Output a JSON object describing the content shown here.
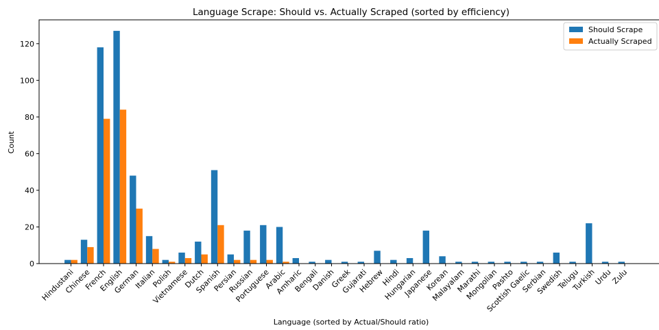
{
  "chart_data": {
    "type": "bar",
    "title": "Language Scrape: Should vs. Actually Scraped (sorted by efficiency)",
    "xlabel": "Language (sorted by Actual/Should ratio)",
    "ylabel": "Count",
    "ylim": [
      0,
      133
    ],
    "yticks": [
      0,
      20,
      40,
      60,
      80,
      100,
      120
    ],
    "grid": false,
    "legend_position": "top-right",
    "categories": [
      "Hindustani",
      "Chinese",
      "French",
      "English",
      "German",
      "Italian",
      "Polish",
      "Vietnamese",
      "Dutch",
      "Spanish",
      "Persian",
      "Russian",
      "Portuguese",
      "Arabic",
      "Amharic",
      "Bengali",
      "Danish",
      "Greek",
      "Gujarati",
      "Hebrew",
      "Hindi",
      "Hungarian",
      "Japanese",
      "Korean",
      "Malayalam",
      "Marathi",
      "Mongolian",
      "Pashto",
      "Scottish Gaelic",
      "Serbian",
      "Swedish",
      "Telugu",
      "Turkish",
      "Urdu",
      "Zulu"
    ],
    "series": [
      {
        "name": "Should Scrape",
        "color": "#1f77b4",
        "values": [
          2,
          13,
          118,
          127,
          48,
          15,
          2,
          6,
          12,
          51,
          5,
          18,
          21,
          20,
          3,
          1,
          2,
          1,
          1,
          7,
          2,
          3,
          18,
          4,
          1,
          1,
          1,
          1,
          1,
          1,
          6,
          1,
          22,
          1,
          1
        ]
      },
      {
        "name": "Actually Scraped",
        "color": "#ff7f0e",
        "values": [
          2,
          9,
          79,
          84,
          30,
          8,
          1,
          3,
          5,
          21,
          2,
          2,
          2,
          1,
          0,
          0,
          0,
          0,
          0,
          0,
          0,
          0,
          0,
          0,
          0,
          0,
          0,
          0,
          0,
          0,
          0,
          0,
          0,
          0,
          0
        ]
      }
    ]
  }
}
